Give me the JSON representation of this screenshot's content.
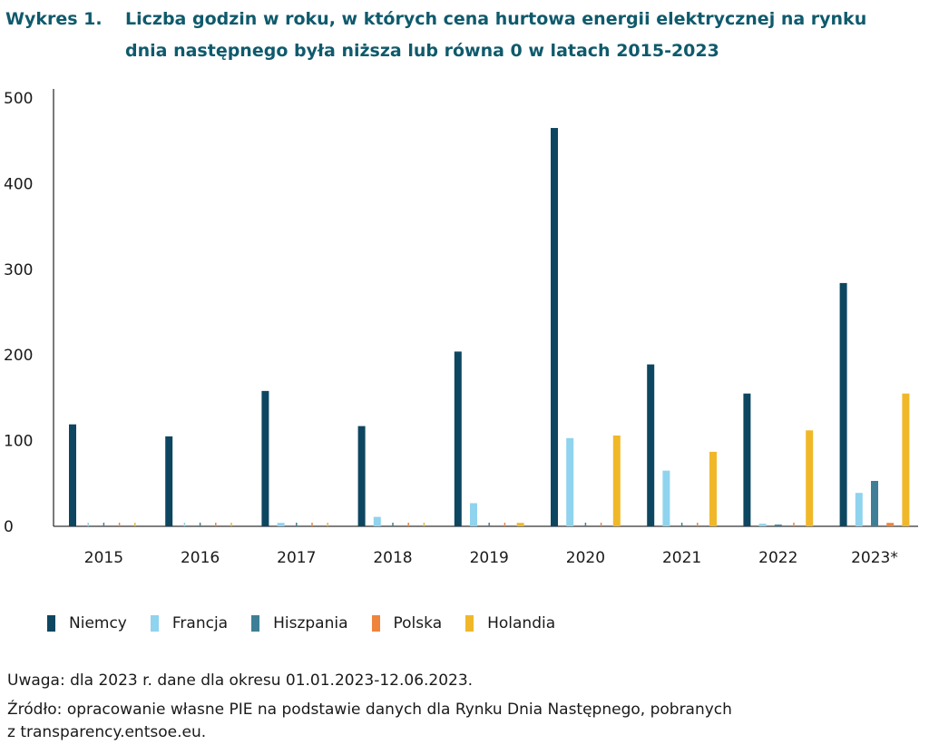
{
  "header": {
    "label": "Wykres 1.",
    "title_line1": "Liczba godzin w roku, w których cena hurtowa energii elektrycznej na rynku",
    "title_line2": "dnia następnego była niższa lub równa 0 w latach 2015-2023"
  },
  "chart_data": {
    "type": "bar",
    "categories": [
      "2015",
      "2016",
      "2017",
      "2018",
      "2019",
      "2020",
      "2021",
      "2022",
      "2023*"
    ],
    "ylim": [
      0,
      500
    ],
    "yticks": [
      "0",
      "100",
      "200",
      "300",
      "400",
      "500"
    ],
    "grid": false,
    "legend_position": "bottom",
    "series": [
      {
        "name": "Niemcy",
        "color": "#0d4660",
        "values": [
          119,
          105,
          158,
          117,
          204,
          465,
          189,
          155,
          284
        ]
      },
      {
        "name": "Francja",
        "color": "#8fd3ee",
        "values": [
          0,
          0,
          4,
          11,
          27,
          103,
          65,
          3,
          39
        ]
      },
      {
        "name": "Hiszpania",
        "color": "#3e7f97",
        "values": [
          0,
          0,
          0,
          0,
          0,
          0,
          0,
          2,
          53
        ]
      },
      {
        "name": "Polska",
        "color": "#ef843c",
        "values": [
          0,
          0,
          0,
          0,
          0,
          0,
          0,
          0,
          4
        ]
      },
      {
        "name": "Holandia",
        "color": "#f0b829",
        "values": [
          0,
          0,
          0,
          0,
          4,
          106,
          87,
          112,
          155
        ]
      }
    ]
  },
  "notes": {
    "line1": "Uwaga: dla 2023 r. dane dla okresu 01.01.2023-12.06.2023.",
    "line2": "Źródło: opracowanie własne PIE na podstawie danych dla Rynku Dnia Następnego, pobranych",
    "line3": "z transparency.entsoe.eu."
  }
}
